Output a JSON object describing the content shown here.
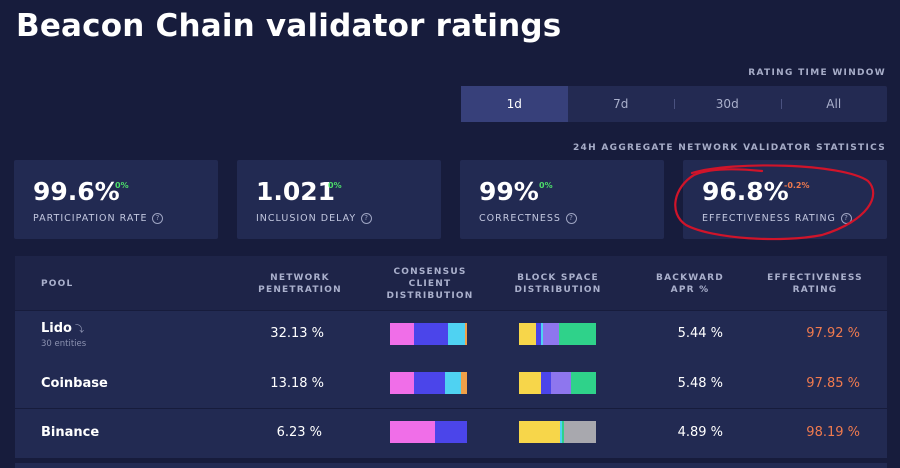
{
  "page": {
    "title": "Beacon Chain validator ratings"
  },
  "time_window": {
    "label": "RATING TIME WINDOW",
    "options": [
      "1d",
      "7d",
      "30d",
      "All"
    ],
    "selected": "1d"
  },
  "stats": {
    "label": "24H AGGREGATE NETWORK VALIDATOR STATISTICS",
    "cards": [
      {
        "value": "99.6%",
        "delta": "0%",
        "label": "PARTICIPATION RATE"
      },
      {
        "value": "1.021",
        "delta": "0%",
        "label": "INCLUSION DELAY"
      },
      {
        "value": "99%",
        "delta": "0%",
        "label": "CORRECTNESS"
      },
      {
        "value": "96.8%",
        "delta": "-0.2%",
        "label": "EFFECTIVENESS RATING"
      }
    ]
  },
  "colors": {
    "background": "#171c3c",
    "card": "#222a52",
    "positive": "#4ddf6a",
    "negative": "#f07a4e",
    "annotation": "#d0142a"
  },
  "table": {
    "headers": {
      "pool": "POOL",
      "network_penetration": [
        "NETWORK",
        "PENETRATION"
      ],
      "consensus": [
        "CONSENSUS",
        "CLIENT",
        "DISTRIBUTION"
      ],
      "block_space": [
        "BLOCK SPACE",
        "DISTRIBUTION"
      ],
      "backward_apr": [
        "BACKWARD",
        "APR %"
      ],
      "effectiveness": [
        "EFFECTIVENESS",
        "RATING"
      ]
    },
    "rows": [
      {
        "pool": "Lido",
        "sub": "30 entities",
        "icon": "chain-link-icon",
        "penetration": "32.13 %",
        "apr": "5.44 %",
        "effectiveness": "97.92 %",
        "consensus": [
          {
            "color": "#f06ee8",
            "share": 0.31
          },
          {
            "color": "#4b45ea",
            "share": 0.44
          },
          {
            "color": "#4fd2f2",
            "share": 0.22
          },
          {
            "color": "#f0a048",
            "share": 0.03
          }
        ],
        "blockspace": [
          {
            "color": "#f7d64a",
            "share": 0.22
          },
          {
            "color": "#4b45ea",
            "share": 0.06
          },
          {
            "color": "#4fd2f2",
            "share": 0.03
          },
          {
            "color": "#8e76ee",
            "share": 0.21
          },
          {
            "color": "#2fd28a",
            "share": 0.48
          }
        ]
      },
      {
        "pool": "Coinbase",
        "sub": "",
        "penetration": "13.18 %",
        "apr": "5.48 %",
        "effectiveness": "97.85 %",
        "consensus": [
          {
            "color": "#f06ee8",
            "share": 0.31
          },
          {
            "color": "#4b45ea",
            "share": 0.41
          },
          {
            "color": "#4fd2f2",
            "share": 0.2
          },
          {
            "color": "#f0a048",
            "share": 0.08
          }
        ],
        "blockspace": [
          {
            "color": "#f7d64a",
            "share": 0.29
          },
          {
            "color": "#4b45ea",
            "share": 0.12
          },
          {
            "color": "#8e76ee",
            "share": 0.27
          },
          {
            "color": "#2fd28a",
            "share": 0.32
          }
        ]
      },
      {
        "pool": "Binance",
        "sub": "",
        "penetration": "6.23 %",
        "apr": "4.89 %",
        "effectiveness": "98.19 %",
        "consensus": [
          {
            "color": "#f06ee8",
            "share": 0.58
          },
          {
            "color": "#4b45ea",
            "share": 0.42
          }
        ],
        "blockspace": [
          {
            "color": "#f7d64a",
            "share": 0.53
          },
          {
            "color": "#4fd2f2",
            "share": 0.03
          },
          {
            "color": "#2fd28a",
            "share": 0.02
          },
          {
            "color": "#a8a8ae",
            "share": 0.42
          }
        ]
      }
    ]
  }
}
